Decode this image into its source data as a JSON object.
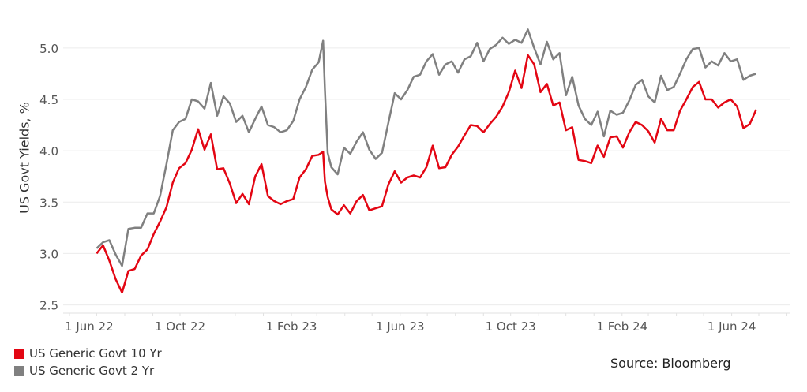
{
  "chart_data": {
    "type": "line",
    "title": "",
    "xlabel": "",
    "ylabel": "US Govt Yields, %",
    "xlim": [
      "2022-05-25",
      "2024-08-04"
    ],
    "ylim": [
      2.42,
      5.39
    ],
    "y_ticks": [
      2.5,
      3.0,
      3.5,
      4.0,
      4.5,
      5.0
    ],
    "y_tick_labels": [
      "2.5",
      "3.0",
      "3.5",
      "4.0",
      "4.5",
      "5.0"
    ],
    "x_ticks": [
      "2022-06-01",
      "2022-10-01",
      "2023-02-01",
      "2023-06-01",
      "2023-10-01",
      "2024-02-01",
      "2024-06-01"
    ],
    "x_tick_labels": [
      "1 Jun 22",
      "1 Oct 22",
      "1 Feb 23",
      "1 Jun 23",
      "1 Oct 23",
      "1 Feb 24",
      "1 Jun 24"
    ],
    "grid": "horizontal",
    "legend_placement": "bottom-left",
    "x": [
      "2022-07-01",
      "2022-07-08",
      "2022-07-15",
      "2022-07-22",
      "2022-07-29",
      "2022-08-05",
      "2022-08-12",
      "2022-08-19",
      "2022-08-26",
      "2022-09-02",
      "2022-09-09",
      "2022-09-16",
      "2022-09-23",
      "2022-09-30",
      "2022-10-07",
      "2022-10-14",
      "2022-10-21",
      "2022-10-28",
      "2022-11-04",
      "2022-11-11",
      "2022-11-18",
      "2022-11-25",
      "2022-12-02",
      "2022-12-09",
      "2022-12-16",
      "2022-12-23",
      "2022-12-30",
      "2023-01-06",
      "2023-01-13",
      "2023-01-20",
      "2023-01-27",
      "2023-02-03",
      "2023-02-10",
      "2023-02-17",
      "2023-02-24",
      "2023-03-03",
      "2023-03-08",
      "2023-03-10",
      "2023-03-13",
      "2023-03-17",
      "2023-03-24",
      "2023-03-31",
      "2023-04-07",
      "2023-04-14",
      "2023-04-21",
      "2023-04-28",
      "2023-05-05",
      "2023-05-12",
      "2023-05-19",
      "2023-05-26",
      "2023-06-02",
      "2023-06-09",
      "2023-06-16",
      "2023-06-23",
      "2023-06-30",
      "2023-07-07",
      "2023-07-14",
      "2023-07-21",
      "2023-07-28",
      "2023-08-04",
      "2023-08-11",
      "2023-08-18",
      "2023-08-25",
      "2023-09-01",
      "2023-09-08",
      "2023-09-15",
      "2023-09-22",
      "2023-09-29",
      "2023-10-06",
      "2023-10-13",
      "2023-10-20",
      "2023-10-27",
      "2023-11-03",
      "2023-11-10",
      "2023-11-17",
      "2023-11-24",
      "2023-12-01",
      "2023-12-08",
      "2023-12-15",
      "2023-12-22",
      "2023-12-29",
      "2024-01-05",
      "2024-01-12",
      "2024-01-19",
      "2024-01-26",
      "2024-02-02",
      "2024-02-09",
      "2024-02-16",
      "2024-02-23",
      "2024-03-01",
      "2024-03-08",
      "2024-03-15",
      "2024-03-22",
      "2024-03-29",
      "2024-04-05",
      "2024-04-12",
      "2024-04-19",
      "2024-04-26",
      "2024-05-03",
      "2024-05-10",
      "2024-05-17",
      "2024-05-24",
      "2024-05-31",
      "2024-06-07",
      "2024-06-14",
      "2024-06-21",
      "2024-06-28"
    ],
    "series": [
      {
        "name": "US Generic Govt 10 Yr",
        "color": "#e30613",
        "values": [
          3.0,
          3.08,
          2.93,
          2.75,
          2.62,
          2.83,
          2.85,
          2.98,
          3.04,
          3.19,
          3.31,
          3.45,
          3.69,
          3.83,
          3.88,
          4.01,
          4.21,
          4.01,
          4.16,
          3.82,
          3.83,
          3.68,
          3.49,
          3.58,
          3.48,
          3.75,
          3.87,
          3.56,
          3.51,
          3.48,
          3.51,
          3.53,
          3.74,
          3.82,
          3.95,
          3.96,
          3.99,
          3.7,
          3.55,
          3.43,
          3.38,
          3.47,
          3.39,
          3.51,
          3.57,
          3.42,
          3.44,
          3.46,
          3.67,
          3.8,
          3.69,
          3.74,
          3.76,
          3.74,
          3.84,
          4.05,
          3.83,
          3.84,
          3.96,
          4.04,
          4.15,
          4.25,
          4.24,
          4.18,
          4.26,
          4.33,
          4.43,
          4.57,
          4.78,
          4.61,
          4.93,
          4.84,
          4.57,
          4.65,
          4.44,
          4.47,
          4.2,
          4.23,
          3.91,
          3.9,
          3.88,
          4.05,
          3.94,
          4.13,
          4.14,
          4.03,
          4.18,
          4.28,
          4.25,
          4.19,
          4.08,
          4.31,
          4.2,
          4.2,
          4.39,
          4.5,
          4.62,
          4.67,
          4.5,
          4.5,
          4.42,
          4.47,
          4.5,
          4.43,
          4.22,
          4.26,
          4.4
        ]
      },
      {
        "name": "US Generic Govt 2 Yr",
        "color": "#808080",
        "values": [
          3.05,
          3.11,
          3.13,
          2.99,
          2.88,
          3.24,
          3.25,
          3.25,
          3.39,
          3.39,
          3.56,
          3.87,
          4.2,
          4.28,
          4.31,
          4.5,
          4.48,
          4.41,
          4.66,
          4.34,
          4.53,
          4.46,
          4.28,
          4.34,
          4.18,
          4.31,
          4.43,
          4.25,
          4.23,
          4.18,
          4.2,
          4.29,
          4.5,
          4.62,
          4.79,
          4.86,
          5.07,
          4.59,
          3.98,
          3.84,
          3.77,
          4.03,
          3.97,
          4.09,
          4.18,
          4.01,
          3.92,
          3.98,
          4.27,
          4.56,
          4.5,
          4.59,
          4.72,
          4.74,
          4.87,
          4.94,
          4.74,
          4.84,
          4.87,
          4.76,
          4.89,
          4.92,
          5.05,
          4.87,
          4.99,
          5.03,
          5.1,
          5.04,
          5.08,
          5.05,
          5.18,
          5.0,
          4.84,
          5.06,
          4.89,
          4.95,
          4.54,
          4.72,
          4.44,
          4.31,
          4.25,
          4.38,
          4.14,
          4.39,
          4.35,
          4.37,
          4.49,
          4.64,
          4.69,
          4.53,
          4.47,
          4.73,
          4.59,
          4.62,
          4.75,
          4.89,
          4.99,
          5.0,
          4.81,
          4.87,
          4.83,
          4.95,
          4.87,
          4.89,
          4.69,
          4.73,
          4.75
        ]
      }
    ],
    "source": "Source: Bloomberg"
  }
}
